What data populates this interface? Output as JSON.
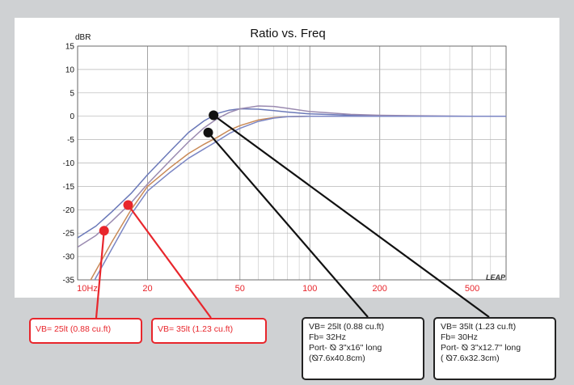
{
  "chart_data": {
    "type": "line",
    "title": "Ratio vs. Freq",
    "ylabel": "dBR",
    "xlabel": "",
    "xscale": "log",
    "xlim": [
      10,
      700
    ],
    "ylim": [
      -35,
      15
    ],
    "y_ticks": [
      15,
      10,
      5,
      0,
      -5,
      -10,
      -15,
      -20,
      -25,
      -30,
      -35
    ],
    "y_tick_labels": [
      "15",
      "10",
      "5",
      "0",
      "-5",
      "-10",
      "-15",
      "-20",
      "-25",
      "-30",
      "-35"
    ],
    "x_ticks": [
      10,
      20,
      50,
      100,
      200,
      500
    ],
    "x_tick_labels": [
      "10Hz",
      "20",
      "50",
      "100",
      "200",
      "500"
    ],
    "grid": true,
    "watermark": "LEAP",
    "series": [
      {
        "color": "#6a78b8",
        "x": [
          10,
          12,
          14,
          17,
          20,
          25,
          30,
          35,
          40,
          45,
          50,
          60,
          70,
          80,
          100,
          150,
          200,
          300,
          500,
          700
        ],
        "y": [
          -26,
          -23.5,
          -20.5,
          -16.5,
          -12.5,
          -7.5,
          -3.5,
          -1,
          0.6,
          1.3,
          1.6,
          1.5,
          1.2,
          0.9,
          0.5,
          0.2,
          0.1,
          0,
          0,
          0
        ]
      },
      {
        "color": "#9a8ab0",
        "x": [
          10,
          12,
          14,
          17,
          20,
          25,
          30,
          35,
          40,
          45,
          50,
          60,
          70,
          80,
          100,
          150,
          200,
          300,
          500,
          700
        ],
        "y": [
          -28,
          -25.5,
          -22.5,
          -18.5,
          -14.5,
          -9.5,
          -5.5,
          -2.5,
          -0.5,
          0.8,
          1.6,
          2.2,
          2.1,
          1.7,
          1,
          0.4,
          0.2,
          0.1,
          0,
          0
        ]
      },
      {
        "color": "#c98a57",
        "x": [
          10,
          12,
          14,
          17,
          20,
          25,
          30,
          35,
          40,
          45,
          50,
          60,
          70,
          80,
          100,
          150,
          200,
          300,
          500,
          700
        ],
        "y": [
          -40,
          -33,
          -27,
          -20,
          -15,
          -11,
          -8,
          -6,
          -4.5,
          -3,
          -2,
          -0.8,
          -0.3,
          -0.1,
          0,
          0,
          0,
          0,
          0,
          0
        ]
      },
      {
        "color": "#7b86c4",
        "x": [
          10,
          12,
          14,
          17,
          20,
          25,
          30,
          35,
          40,
          45,
          50,
          60,
          70,
          80,
          100,
          150,
          200,
          300,
          500,
          700
        ],
        "y": [
          -42,
          -34.5,
          -28.5,
          -21,
          -16,
          -12,
          -9,
          -7,
          -5.3,
          -3.7,
          -2.6,
          -1.1,
          -0.4,
          -0.1,
          0,
          0,
          0,
          0,
          0,
          0
        ]
      }
    ],
    "markers": [
      {
        "color": "#e8262c",
        "x": 13,
        "y": -24.5
      },
      {
        "color": "#e8262c",
        "x": 16.5,
        "y": -19
      },
      {
        "color": "#111111",
        "x": 36.5,
        "y": -3.5
      },
      {
        "color": "#111111",
        "x": 38.5,
        "y": 0.2
      }
    ]
  },
  "callouts": [
    {
      "lines": [
        "VB= 25lt (0.88 cu.ft)"
      ]
    },
    {
      "lines": [
        "VB= 35lt (1.23 cu.ft)"
      ]
    },
    {
      "lines": [
        "VB= 25lt (0.88 cu.ft)",
        "Fb= 32Hz",
        "Port- ⦰ 3\"x16'' long",
        "(⦰7.6x40.8cm)"
      ]
    },
    {
      "lines": [
        "VB= 35lt (1.23 cu.ft)",
        "Fb= 30Hz",
        "Port- ⦰ 3\"x12.7'' long",
        "( ⦰7.6x32.3cm)"
      ]
    }
  ]
}
